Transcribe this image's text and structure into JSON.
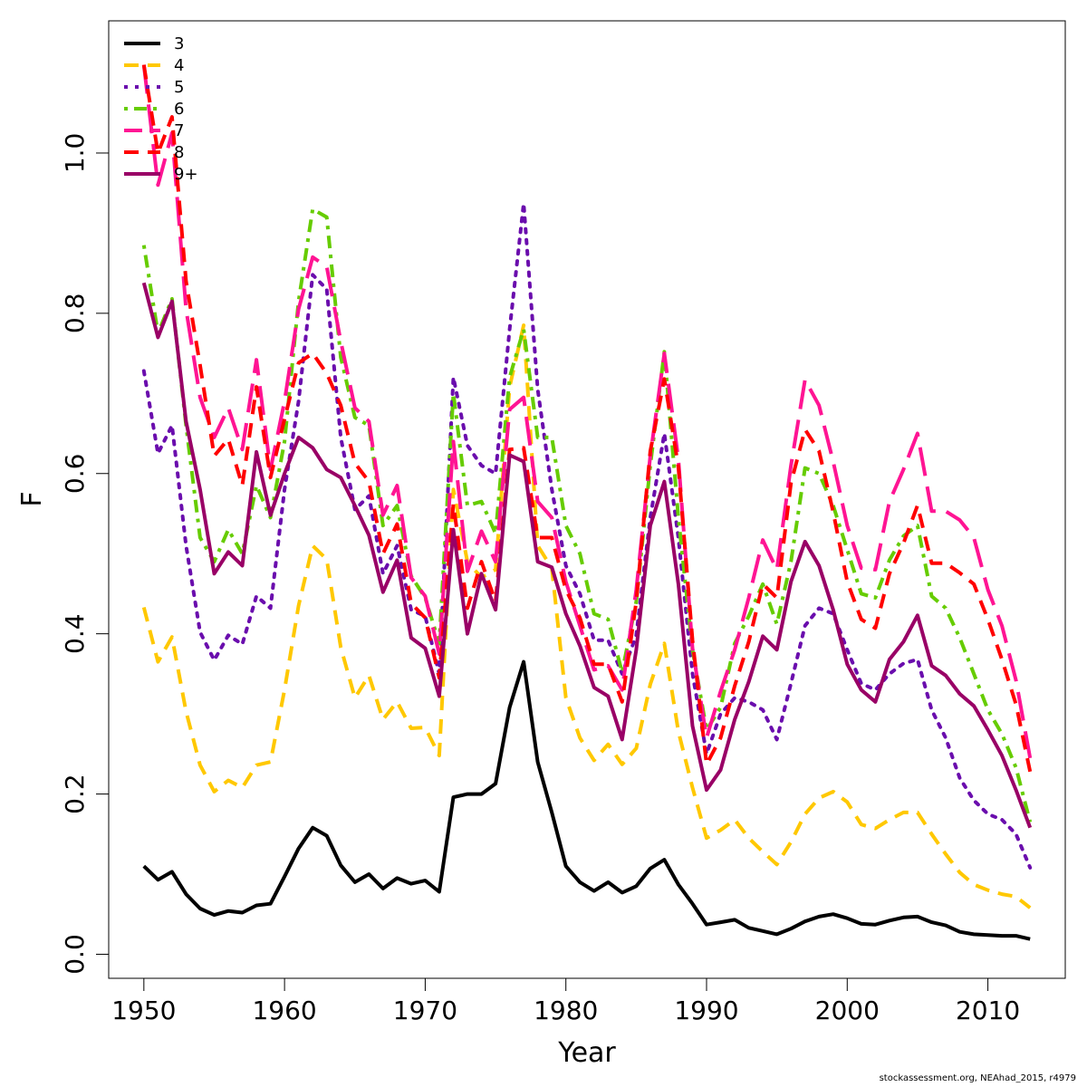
{
  "credit": "stockassessment.org, NEAhad_2015, r4979",
  "chart_data": {
    "type": "line",
    "xlabel": "Year",
    "ylabel": "F",
    "xlim": [
      1947.5,
      2015.5
    ],
    "ylim": [
      -0.03,
      1.165
    ],
    "xticks": [
      1950,
      1960,
      1970,
      1980,
      1990,
      2000,
      2010
    ],
    "yticks": [
      0.0,
      0.2,
      0.4,
      0.6,
      0.8,
      1.0
    ],
    "ytick_labels": [
      "0.0",
      "0.2",
      "0.4",
      "0.6",
      "0.8",
      "1.0"
    ],
    "grid": false,
    "legend_position": "top-left",
    "x": [
      1950,
      1951,
      1952,
      1953,
      1954,
      1955,
      1956,
      1957,
      1958,
      1959,
      1960,
      1961,
      1962,
      1963,
      1964,
      1965,
      1966,
      1967,
      1968,
      1969,
      1970,
      1971,
      1972,
      1973,
      1974,
      1975,
      1976,
      1977,
      1978,
      1979,
      1980,
      1981,
      1982,
      1983,
      1984,
      1985,
      1986,
      1987,
      1988,
      1989,
      1990,
      1991,
      1992,
      1993,
      1994,
      1995,
      1996,
      1997,
      1998,
      1999,
      2000,
      2001,
      2002,
      2003,
      2004,
      2005,
      2006,
      2007,
      2008,
      2009,
      2010,
      2011,
      2012,
      2013
    ],
    "series": [
      {
        "name": "3",
        "color": "#000000",
        "dash": "solid",
        "values": [
          0.11,
          0.093,
          0.103,
          0.075,
          0.057,
          0.049,
          0.054,
          0.052,
          0.061,
          0.063,
          0.097,
          0.132,
          0.158,
          0.148,
          0.111,
          0.09,
          0.1,
          0.082,
          0.095,
          0.088,
          0.092,
          0.078,
          0.196,
          0.2,
          0.2,
          0.213,
          0.308,
          0.365,
          0.24,
          0.177,
          0.11,
          0.09,
          0.079,
          0.09,
          0.077,
          0.085,
          0.107,
          0.118,
          0.087,
          0.063,
          0.037,
          0.04,
          0.043,
          0.033,
          0.029,
          0.025,
          0.032,
          0.041,
          0.047,
          0.05,
          0.045,
          0.038,
          0.037,
          0.042,
          0.046,
          0.047,
          0.04,
          0.036,
          0.028,
          0.025,
          0.024,
          0.023,
          0.023,
          0.019
        ]
      },
      {
        "name": "4",
        "color": "#ffc800",
        "dash": "dashed",
        "values": [
          0.433,
          0.365,
          0.396,
          0.303,
          0.236,
          0.203,
          0.217,
          0.208,
          0.236,
          0.24,
          0.33,
          0.435,
          0.51,
          0.493,
          0.383,
          0.32,
          0.348,
          0.293,
          0.315,
          0.282,
          0.283,
          0.248,
          0.58,
          0.49,
          0.47,
          0.48,
          0.708,
          0.785,
          0.51,
          0.482,
          0.32,
          0.27,
          0.242,
          0.262,
          0.237,
          0.257,
          0.337,
          0.388,
          0.278,
          0.208,
          0.145,
          0.155,
          0.168,
          0.145,
          0.128,
          0.112,
          0.14,
          0.175,
          0.195,
          0.203,
          0.19,
          0.162,
          0.157,
          0.168,
          0.177,
          0.177,
          0.15,
          0.125,
          0.102,
          0.087,
          0.08,
          0.075,
          0.072,
          0.058
        ]
      },
      {
        "name": "5",
        "color": "#6a0dad",
        "dash": "dotted",
        "values": [
          0.728,
          0.625,
          0.66,
          0.51,
          0.402,
          0.367,
          0.398,
          0.387,
          0.447,
          0.432,
          0.58,
          0.69,
          0.848,
          0.83,
          0.645,
          0.555,
          0.572,
          0.475,
          0.51,
          0.43,
          0.422,
          0.35,
          0.72,
          0.635,
          0.61,
          0.6,
          0.78,
          0.937,
          0.705,
          0.58,
          0.485,
          0.45,
          0.392,
          0.392,
          0.35,
          0.398,
          0.545,
          0.65,
          0.52,
          0.35,
          0.25,
          0.3,
          0.32,
          0.315,
          0.305,
          0.268,
          0.338,
          0.41,
          0.432,
          0.425,
          0.38,
          0.338,
          0.33,
          0.35,
          0.363,
          0.368,
          0.305,
          0.27,
          0.22,
          0.192,
          0.175,
          0.168,
          0.15,
          0.108
        ]
      },
      {
        "name": "6",
        "color": "#66cc00",
        "dash": "dashdot",
        "values": [
          0.885,
          0.775,
          0.818,
          0.66,
          0.52,
          0.49,
          0.53,
          0.5,
          0.585,
          0.545,
          0.64,
          0.815,
          0.93,
          0.92,
          0.745,
          0.67,
          0.66,
          0.535,
          0.56,
          0.472,
          0.445,
          0.388,
          0.7,
          0.56,
          0.565,
          0.525,
          0.72,
          0.78,
          0.645,
          0.645,
          0.535,
          0.5,
          0.425,
          0.418,
          0.352,
          0.44,
          0.61,
          0.752,
          0.545,
          0.38,
          0.28,
          0.308,
          0.388,
          0.422,
          0.462,
          0.412,
          0.49,
          0.607,
          0.6,
          0.56,
          0.505,
          0.45,
          0.445,
          0.492,
          0.522,
          0.535,
          0.447,
          0.432,
          0.395,
          0.35,
          0.305,
          0.275,
          0.233,
          0.165
        ]
      },
      {
        "name": "7",
        "color": "#ff1493",
        "dash": "longdash",
        "values": [
          1.11,
          0.96,
          1.025,
          0.805,
          0.695,
          0.645,
          0.682,
          0.63,
          0.742,
          0.605,
          0.69,
          0.805,
          0.87,
          0.858,
          0.765,
          0.682,
          0.665,
          0.548,
          0.585,
          0.47,
          0.447,
          0.375,
          0.64,
          0.478,
          0.528,
          0.49,
          0.68,
          0.695,
          0.565,
          0.545,
          0.465,
          0.41,
          0.355,
          0.36,
          0.33,
          0.455,
          0.622,
          0.75,
          0.618,
          0.382,
          0.27,
          0.328,
          0.38,
          0.445,
          0.517,
          0.48,
          0.61,
          0.717,
          0.685,
          0.615,
          0.535,
          0.482,
          0.48,
          0.565,
          0.605,
          0.65,
          0.553,
          0.553,
          0.542,
          0.52,
          0.455,
          0.41,
          0.342,
          0.245
        ]
      },
      {
        "name": "8",
        "color": "#ff0000",
        "dash": "dashed",
        "values": [
          1.11,
          1.0,
          1.045,
          0.84,
          0.735,
          0.622,
          0.643,
          0.585,
          0.708,
          0.595,
          0.668,
          0.738,
          0.75,
          0.725,
          0.685,
          0.613,
          0.59,
          0.5,
          0.537,
          0.438,
          0.42,
          0.345,
          0.562,
          0.432,
          0.49,
          0.44,
          0.63,
          0.632,
          0.52,
          0.52,
          0.455,
          0.42,
          0.362,
          0.362,
          0.315,
          0.44,
          0.628,
          0.718,
          0.608,
          0.392,
          0.237,
          0.27,
          0.335,
          0.39,
          0.462,
          0.445,
          0.588,
          0.655,
          0.628,
          0.552,
          0.465,
          0.418,
          0.407,
          0.475,
          0.513,
          0.56,
          0.488,
          0.488,
          0.476,
          0.462,
          0.418,
          0.368,
          0.312,
          0.228
        ]
      },
      {
        "name": "9+",
        "color": "#990066",
        "dash": "solid",
        "values": [
          0.838,
          0.77,
          0.815,
          0.665,
          0.58,
          0.475,
          0.502,
          0.485,
          0.627,
          0.548,
          0.6,
          0.645,
          0.632,
          0.605,
          0.595,
          0.56,
          0.523,
          0.452,
          0.492,
          0.395,
          0.382,
          0.322,
          0.53,
          0.4,
          0.475,
          0.43,
          0.623,
          0.615,
          0.49,
          0.483,
          0.425,
          0.385,
          0.333,
          0.322,
          0.268,
          0.38,
          0.535,
          0.59,
          0.462,
          0.285,
          0.205,
          0.23,
          0.293,
          0.34,
          0.397,
          0.38,
          0.465,
          0.515,
          0.485,
          0.43,
          0.362,
          0.33,
          0.315,
          0.368,
          0.39,
          0.423,
          0.36,
          0.348,
          0.325,
          0.31,
          0.28,
          0.248,
          0.205,
          0.158
        ]
      }
    ]
  }
}
